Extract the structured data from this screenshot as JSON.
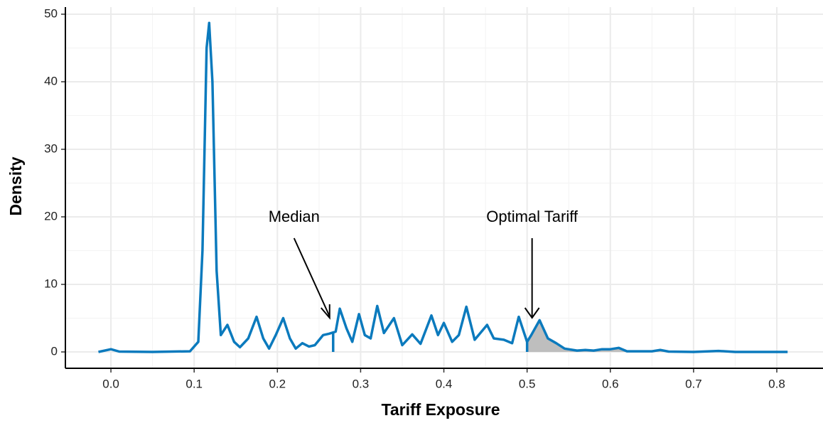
{
  "chart_data": {
    "type": "density",
    "x_label": "Tariff Exposure",
    "y_label": "Density",
    "x": [
      -0.015,
      0.0,
      0.01,
      0.05,
      0.095,
      0.105,
      0.11,
      0.115,
      0.118,
      0.122,
      0.127,
      0.132,
      0.14,
      0.148,
      0.155,
      0.165,
      0.175,
      0.183,
      0.19,
      0.198,
      0.207,
      0.215,
      0.222,
      0.23,
      0.238,
      0.245,
      0.255,
      0.262,
      0.27,
      0.275,
      0.283,
      0.29,
      0.298,
      0.305,
      0.312,
      0.32,
      0.328,
      0.34,
      0.35,
      0.362,
      0.372,
      0.385,
      0.393,
      0.4,
      0.41,
      0.418,
      0.427,
      0.437,
      0.452,
      0.46,
      0.472,
      0.482,
      0.49,
      0.5,
      0.505,
      0.515,
      0.525,
      0.535,
      0.545,
      0.56,
      0.57,
      0.58,
      0.59,
      0.6,
      0.61,
      0.62,
      0.65,
      0.66,
      0.67,
      0.7,
      0.73,
      0.75,
      0.813
    ],
    "series": [
      {
        "name": "Density",
        "color": "#0b7abd",
        "values": [
          0.0,
          0.4,
          0.05,
          0.0,
          0.1,
          1.5,
          15,
          45,
          48.7,
          40,
          12,
          2.5,
          4.0,
          1.5,
          0.7,
          2,
          5.2,
          2,
          0.5,
          2.5,
          5.0,
          2,
          0.5,
          1.3,
          0.8,
          1.0,
          2.5,
          2.7,
          3,
          6.4,
          3.5,
          1.5,
          5.6,
          2.5,
          2,
          6.8,
          2.8,
          5.0,
          1.0,
          2.6,
          1.2,
          5.4,
          2.5,
          4.3,
          1.5,
          2.5,
          6.7,
          1.8,
          4.0,
          2.0,
          1.8,
          1.3,
          5.2,
          1.5,
          2.5,
          4.7,
          2.0,
          1.3,
          0.5,
          0.2,
          0.3,
          0.2,
          0.4,
          0.4,
          0.6,
          0.1,
          0.1,
          0.3,
          0.05,
          0.0,
          0.15,
          0.0,
          0.0
        ]
      }
    ],
    "median": 0.267,
    "median_label": "Median",
    "optimal_tariff": 0.5,
    "optimal_label": "Optimal Tariff",
    "shade_color": "#bebebe",
    "xlim": [
      -0.0547,
      0.8555
    ],
    "ylim": [
      -2.42,
      51.05
    ],
    "xticks": [
      {
        "value": 0,
        "label": "0.0"
      },
      0.1,
      0.2,
      0.3,
      0.4,
      0.5,
      0.6,
      0.7,
      0.8
    ],
    "yticks": [
      0,
      10,
      20,
      30,
      40,
      50
    ],
    "grid": true
  }
}
